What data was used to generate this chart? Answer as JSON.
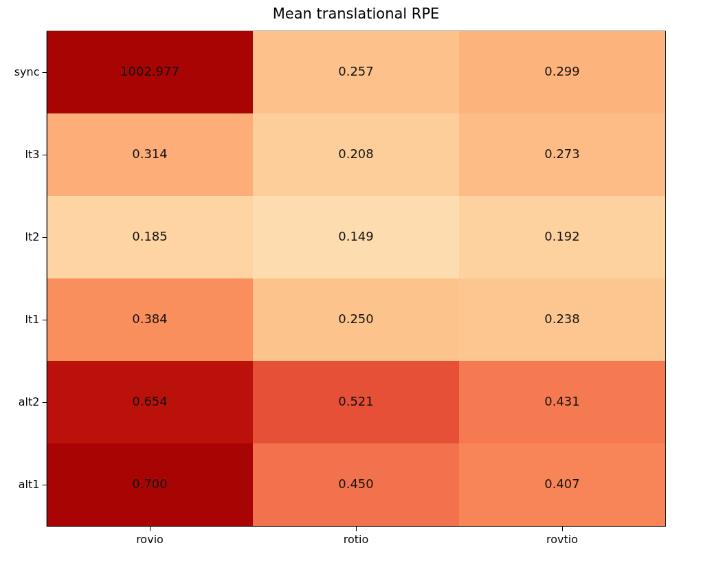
{
  "chart_data": {
    "type": "heatmap",
    "title": "Mean translational RPE",
    "categories": [
      "rovio",
      "rotio",
      "rovtio"
    ],
    "y_categories": [
      "sync",
      "lt3",
      "lt2",
      "lt1",
      "alt2",
      "alt1"
    ],
    "cells": [
      [
        1002.977,
        0.257,
        0.299
      ],
      [
        0.314,
        0.208,
        0.273
      ],
      [
        0.185,
        0.149,
        0.192
      ],
      [
        0.384,
        0.25,
        0.238
      ],
      [
        0.654,
        0.521,
        0.431
      ],
      [
        0.7,
        0.45,
        0.407
      ]
    ],
    "cell_labels": [
      [
        "1002.977",
        "0.257",
        "0.299"
      ],
      [
        "0.314",
        "0.208",
        "0.273"
      ],
      [
        "0.185",
        "0.149",
        "0.192"
      ],
      [
        "0.384",
        "0.250",
        "0.238"
      ],
      [
        "0.654",
        "0.521",
        "0.431"
      ],
      [
        "0.700",
        "0.450",
        "0.407"
      ]
    ]
  }
}
